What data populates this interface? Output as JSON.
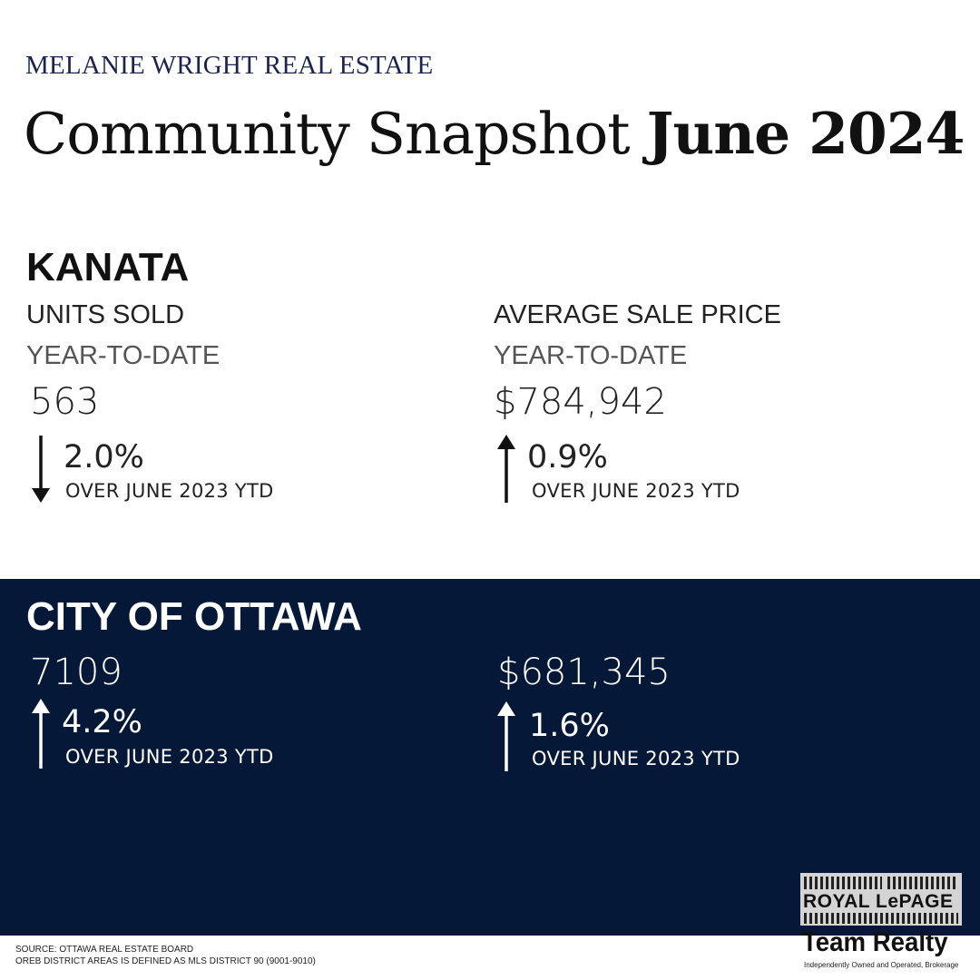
{
  "header": {
    "brand": "MELANIE WRIGHT REAL ESTATE",
    "title_regular": "Community Snapshot",
    "title_bold": "June 2024"
  },
  "kanata": {
    "name": "KANATA",
    "units": {
      "label": "UNITS SOLD",
      "period": "YEAR-TO-DATE",
      "value": "563",
      "change": "2.0%",
      "direction": "down",
      "comparison": "OVER JUNE 2023 YTD"
    },
    "price": {
      "label": "AVERAGE SALE PRICE",
      "period": "YEAR-TO-DATE",
      "value": "$784,942",
      "change": "0.9%",
      "direction": "up",
      "comparison": "OVER JUNE 2023 YTD"
    }
  },
  "ottawa": {
    "name": "CITY OF OTTAWA",
    "units": {
      "value": "7109",
      "change": "4.2%",
      "direction": "up",
      "comparison": "OVER JUNE 2023 YTD"
    },
    "price": {
      "value": "$681,345",
      "change": "1.6%",
      "direction": "up",
      "comparison": "OVER JUNE 2023 YTD"
    }
  },
  "footer": {
    "source": "SOURCE: OTTAWA REAL ESTATE BOARD",
    "district": "OREB DISTRICT AREAS IS DEFINED AS MLS DISTRICT 90 (9001-9010)"
  },
  "logo": {
    "line1": "ROYAL LePAGE",
    "line2": "Team Realty",
    "tagline": "Independently Owned and Operated, Brokerage"
  },
  "colors": {
    "navy_panel": "#051838",
    "brand_text": "#1b2450"
  }
}
